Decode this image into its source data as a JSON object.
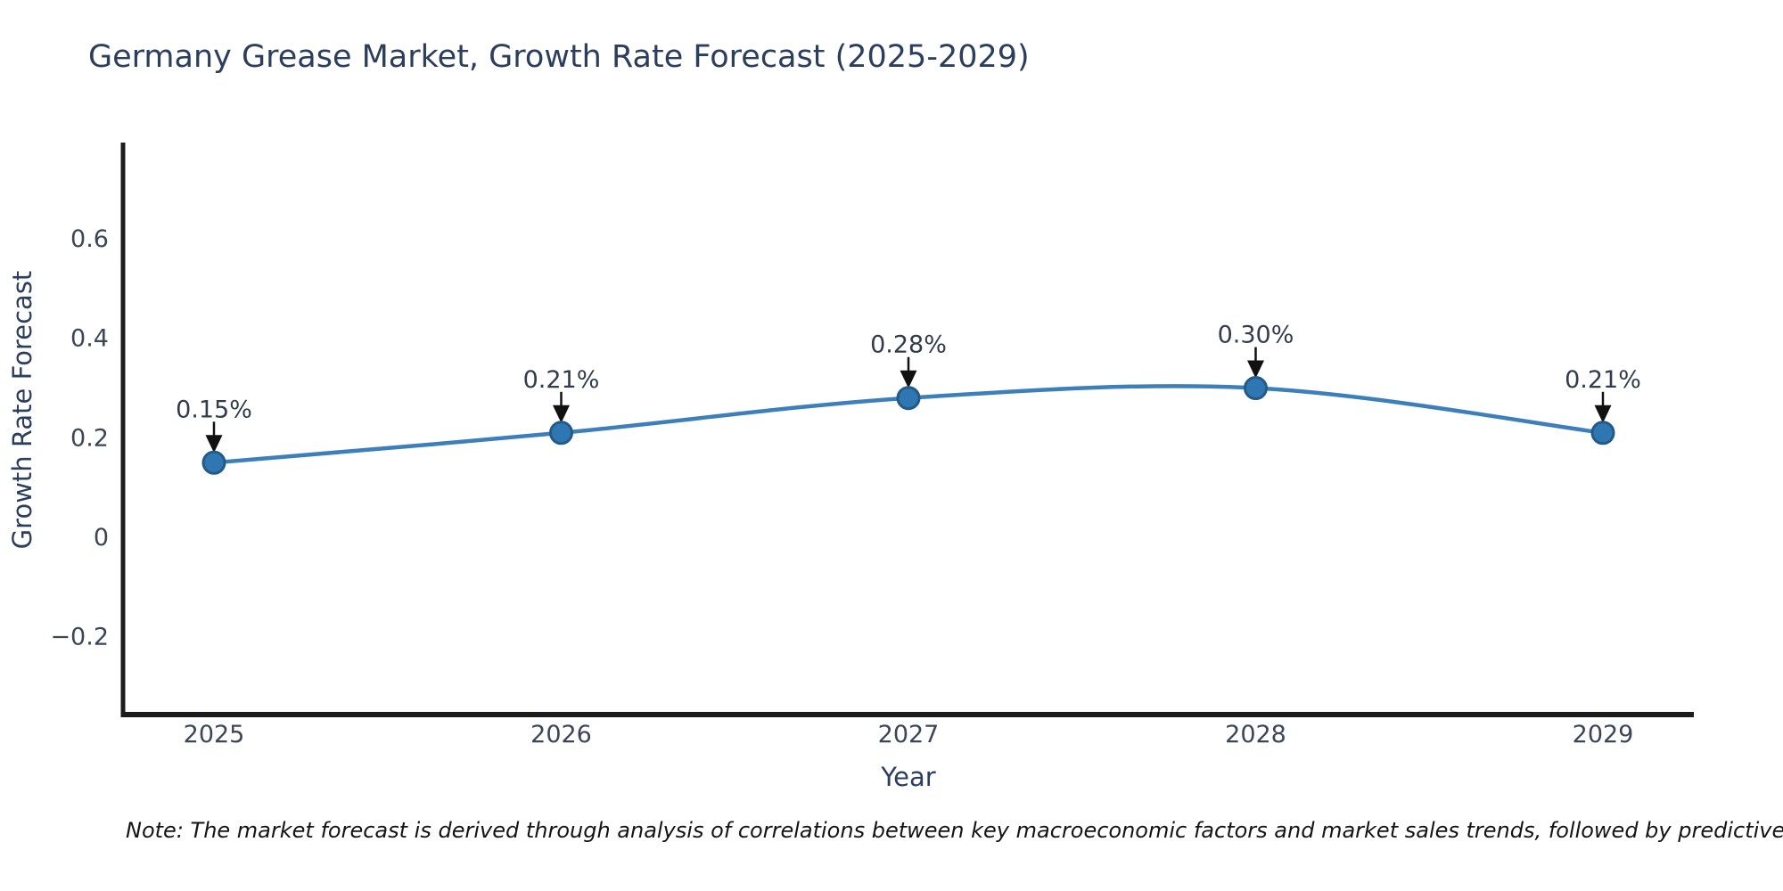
{
  "title": "Germany Grease Market, Growth Rate Forecast (2025-2029)",
  "note": "Note: The market forecast is derived through analysis of correlations between key macroeconomic factors and market sales trends, followed by predictive modeling to project future sales.",
  "chart_data": {
    "type": "line",
    "title": "Germany Grease Market, Growth Rate Forecast (2025-2029)",
    "xlabel": "Year",
    "ylabel": "Growth Rate Forecast",
    "categories": [
      "2025",
      "2026",
      "2027",
      "2028",
      "2029"
    ],
    "values": [
      0.15,
      0.21,
      0.28,
      0.3,
      0.21
    ],
    "point_labels": [
      "0.15%",
      "0.21%",
      "0.28%",
      "0.30%",
      "0.21%"
    ],
    "yticks": [
      0.6,
      0.4,
      0.2,
      0,
      -0.2
    ],
    "ytick_labels": [
      "0.6",
      "0.4",
      "0.2",
      "0",
      "−0.2"
    ],
    "ylim": [
      -0.36,
      0.79
    ],
    "grid": false,
    "legend": "none",
    "line_shape": "spline",
    "annotations": "value labels with downward arrows above each point",
    "colors": {
      "line": "#3d7fba",
      "marker_fill": "#2f77b3",
      "marker_edge": "#235a88",
      "arrow": "#111111",
      "axis": "#1c1c1c",
      "title_text": "#2c3e5d",
      "tick_text": "#3b4757",
      "annotation_text": "#313c4d"
    }
  }
}
